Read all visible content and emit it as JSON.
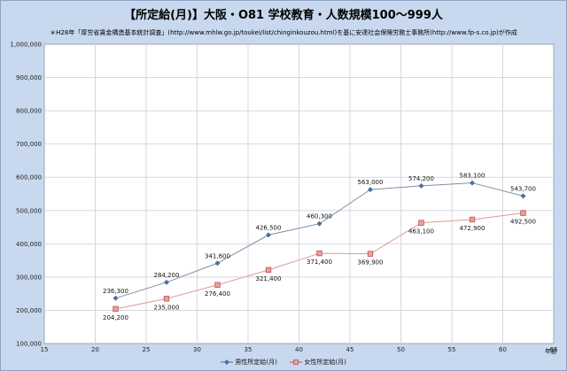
{
  "chart_data": {
    "type": "line",
    "title": "【所定給(月)】大阪・O81 学校教育・人数規模100～999人",
    "subtitle": "＊H28年「厚労省賃金構造基本統計調査」(http://www.mhlw.go.jp/toukei/list/chinginkouzou.html)を基に安達社会保険労務士事務所(http://www.fp-s.co.jp)が作成",
    "xlabel": "年齢",
    "ylabel": "",
    "xlim": [
      15,
      65
    ],
    "ylim": [
      100000,
      1000000
    ],
    "x_ticks": [
      "15",
      "20",
      "25",
      "30",
      "35",
      "40",
      "45",
      "50",
      "55",
      "60",
      "65"
    ],
    "y_ticks": [
      "100,000",
      "200,000",
      "300,000",
      "400,000",
      "500,000",
      "600,000",
      "700,000",
      "800,000",
      "900,000",
      "1,000,000"
    ],
    "grid": true,
    "legend": "bottom",
    "series": [
      {
        "name": "男性所定給(月)",
        "color": "#4a6fa5",
        "marker": "diamond",
        "x": [
          22,
          27,
          32,
          37,
          42,
          47,
          52,
          57,
          62
        ],
        "values": [
          236300,
          284200,
          341600,
          426500,
          460300,
          563000,
          574200,
          583100,
          543700
        ],
        "labels": [
          "236,300",
          "284,200",
          "341,600",
          "426,500",
          "460,300",
          "563,000",
          "574,200",
          "583,100",
          "543,700"
        ]
      },
      {
        "name": "女性所定給(月)",
        "color": "#c0504d",
        "marker": "square",
        "x": [
          22,
          27,
          32,
          37,
          42,
          47,
          52,
          57,
          62
        ],
        "values": [
          204200,
          235000,
          276400,
          321400,
          371400,
          369900,
          463100,
          472900,
          492500
        ],
        "labels": [
          "204,200",
          "235,000",
          "276,400",
          "321,400",
          "371,400",
          "369,900",
          "463,100",
          "472,900",
          "492,500"
        ]
      }
    ]
  }
}
